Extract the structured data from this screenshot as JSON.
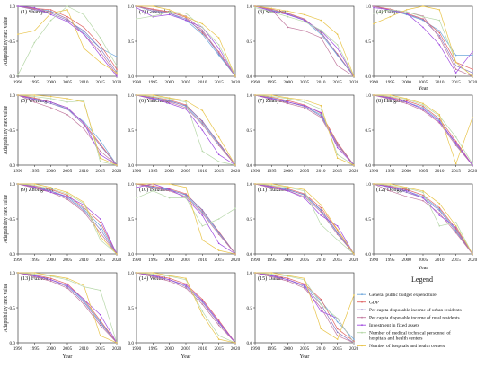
{
  "chart_data": {
    "type": "line",
    "x": [
      1990,
      1995,
      2000,
      2005,
      2010,
      2015,
      2020
    ],
    "xlabel": "Year",
    "ylabel": "Adaptability inex value",
    "ylim": [
      0,
      1
    ],
    "yticks": [
      "0.0",
      "0.5",
      "1.0"
    ],
    "legend": {
      "title": "Legend",
      "placement": "bottom-right",
      "entries": [
        {
          "name": "General public budget expenditure",
          "color": "#6fa8dc"
        },
        {
          "name": "GDP",
          "color": "#e06666"
        },
        {
          "name": "Per capita disposable income of urban residents",
          "color": "#8e7cc3"
        },
        {
          "name": "Per capita disposable income of rural residents",
          "color": "#c27ba0"
        },
        {
          "name": "Investment in fixed assets",
          "color": "#a14de0"
        },
        {
          "name": "Number of medical technical personnel of hospitals and health centers",
          "color": "#b6d7a8"
        },
        {
          "name": "Number of hospitals and health centers",
          "color": "#e8c44a"
        }
      ]
    },
    "panels": [
      {
        "title": "(1) Shanghai",
        "series": [
          [
            1.0,
            0.97,
            0.93,
            0.82,
            0.62,
            0.4,
            0.28
          ],
          [
            1.0,
            0.97,
            0.95,
            0.85,
            0.7,
            0.45,
            0.1
          ],
          [
            1.0,
            0.95,
            0.9,
            0.8,
            0.65,
            0.4,
            0.05
          ],
          [
            1.0,
            0.96,
            0.92,
            0.82,
            0.6,
            0.35,
            0.02
          ],
          [
            1.0,
            0.98,
            0.88,
            0.78,
            0.6,
            0.3,
            0.0
          ],
          [
            0.02,
            0.48,
            0.8,
            1.0,
            0.88,
            0.55,
            0.15
          ],
          [
            0.6,
            0.65,
            0.9,
            0.95,
            0.4,
            0.2,
            0.05
          ]
        ]
      },
      {
        "title": "(2) Guangzhou",
        "series": [
          [
            1.0,
            0.95,
            0.9,
            0.8,
            0.6,
            0.3,
            0.0
          ],
          [
            1.0,
            0.96,
            0.92,
            0.84,
            0.62,
            0.35,
            0.0
          ],
          [
            1.0,
            0.93,
            0.9,
            0.82,
            0.64,
            0.32,
            0.0
          ],
          [
            1.0,
            0.95,
            0.91,
            0.86,
            0.66,
            0.34,
            0.0
          ],
          [
            0.98,
            0.85,
            0.88,
            0.8,
            0.7,
            0.4,
            0.0
          ],
          [
            0.82,
            0.86,
            0.92,
            0.9,
            0.7,
            0.45,
            0.0
          ],
          [
            1.0,
            1.0,
            0.95,
            0.85,
            0.75,
            0.55,
            0.0
          ]
        ]
      },
      {
        "title": "(3) Shenzhen",
        "series": [
          [
            1.0,
            0.95,
            0.88,
            0.8,
            0.6,
            0.3,
            0.0
          ],
          [
            1.0,
            0.96,
            0.9,
            0.82,
            0.62,
            0.32,
            0.0
          ],
          [
            1.0,
            0.94,
            0.89,
            0.81,
            0.63,
            0.31,
            0.0
          ],
          [
            1.0,
            0.95,
            0.7,
            0.65,
            0.55,
            0.15,
            0.0
          ],
          [
            1.0,
            0.93,
            0.88,
            0.8,
            0.65,
            0.4,
            0.0
          ],
          [
            0.98,
            0.92,
            0.85,
            0.78,
            0.66,
            0.45,
            0.0
          ],
          [
            1.0,
            0.97,
            0.93,
            0.88,
            0.8,
            0.6,
            0.0
          ]
        ]
      },
      {
        "title": "(4) Tianjin",
        "series": [
          [
            1.0,
            0.95,
            0.88,
            0.8,
            0.65,
            0.3,
            0.3
          ],
          [
            1.0,
            0.96,
            0.9,
            0.82,
            0.62,
            0.2,
            0.1
          ],
          [
            1.0,
            0.94,
            0.89,
            0.81,
            0.58,
            0.15,
            0.05
          ],
          [
            1.0,
            0.95,
            0.92,
            0.86,
            0.55,
            0.1,
            0.0
          ],
          [
            0.98,
            0.95,
            0.9,
            0.7,
            0.45,
            0.05,
            0.35
          ],
          [
            0.9,
            0.95,
            0.92,
            0.85,
            0.8,
            0.2,
            0.0
          ],
          [
            0.75,
            0.85,
            0.95,
            1.0,
            0.95,
            0.2,
            0.0
          ]
        ]
      },
      {
        "title": "(5) Weifang",
        "series": [
          [
            1.0,
            0.95,
            0.9,
            0.8,
            0.62,
            0.35,
            0.0
          ],
          [
            1.0,
            0.96,
            0.9,
            0.82,
            0.6,
            0.3,
            0.0
          ],
          [
            1.0,
            0.93,
            0.88,
            0.8,
            0.58,
            0.28,
            0.0
          ],
          [
            1.0,
            0.9,
            0.82,
            0.72,
            0.52,
            0.2,
            0.0
          ],
          [
            1.0,
            0.94,
            0.9,
            0.82,
            0.6,
            0.15,
            0.0
          ],
          [
            1.0,
            0.98,
            0.95,
            0.9,
            0.92,
            0.05,
            0.0
          ],
          [
            1.0,
            1.0,
            0.98,
            0.95,
            0.9,
            0.1,
            0.0
          ]
        ]
      },
      {
        "title": "(6) Yancheng",
        "series": [
          [
            1.0,
            0.96,
            0.92,
            0.84,
            0.6,
            0.3,
            0.0
          ],
          [
            1.0,
            0.97,
            0.93,
            0.86,
            0.62,
            0.32,
            0.0
          ],
          [
            1.0,
            0.95,
            0.91,
            0.85,
            0.63,
            0.31,
            0.0
          ],
          [
            1.0,
            0.94,
            0.9,
            0.82,
            0.58,
            0.28,
            0.0
          ],
          [
            1.0,
            0.95,
            0.88,
            0.8,
            0.5,
            0.15,
            0.0
          ],
          [
            1.0,
            0.98,
            0.95,
            0.9,
            0.2,
            0.05,
            0.0
          ],
          [
            1.0,
            1.0,
            0.96,
            0.92,
            0.78,
            0.4,
            0.0
          ]
        ]
      },
      {
        "title": "(7) Zhanjiang",
        "series": [
          [
            1.0,
            0.96,
            0.9,
            0.84,
            0.72,
            0.3,
            0.0
          ],
          [
            1.0,
            0.97,
            0.92,
            0.86,
            0.74,
            0.32,
            0.0
          ],
          [
            1.0,
            0.95,
            0.9,
            0.84,
            0.7,
            0.3,
            0.0
          ],
          [
            1.0,
            0.94,
            0.88,
            0.82,
            0.68,
            0.28,
            0.0
          ],
          [
            1.0,
            0.95,
            0.9,
            0.85,
            0.75,
            0.25,
            0.0
          ],
          [
            1.0,
            0.98,
            0.95,
            0.9,
            0.8,
            0.15,
            0.0
          ],
          [
            1.0,
            1.0,
            0.96,
            0.93,
            0.85,
            0.1,
            0.0
          ]
        ]
      },
      {
        "title": "(8) Hangzhou",
        "series": [
          [
            1.0,
            0.96,
            0.9,
            0.82,
            0.64,
            0.3,
            0.0
          ],
          [
            1.0,
            0.97,
            0.92,
            0.84,
            0.66,
            0.34,
            0.0
          ],
          [
            1.0,
            0.95,
            0.9,
            0.8,
            0.62,
            0.3,
            0.0
          ],
          [
            1.0,
            0.94,
            0.88,
            0.78,
            0.6,
            0.28,
            0.0
          ],
          [
            1.0,
            0.96,
            0.9,
            0.8,
            0.62,
            0.32,
            0.0
          ],
          [
            1.0,
            0.98,
            0.94,
            0.86,
            0.7,
            0.4,
            0.02
          ],
          [
            1.0,
            1.0,
            0.95,
            0.88,
            0.72,
            0.02,
            0.68
          ]
        ]
      },
      {
        "title": "(9) Zhongshan",
        "series": [
          [
            1.0,
            0.96,
            0.9,
            0.82,
            0.64,
            0.4,
            0.0
          ],
          [
            1.0,
            0.97,
            0.92,
            0.84,
            0.66,
            0.45,
            0.0
          ],
          [
            1.0,
            0.95,
            0.9,
            0.8,
            0.62,
            0.35,
            0.0
          ],
          [
            1.0,
            0.94,
            0.88,
            0.78,
            0.6,
            0.3,
            0.0
          ],
          [
            1.0,
            0.96,
            0.88,
            0.82,
            0.7,
            0.5,
            0.0
          ],
          [
            1.0,
            0.98,
            0.93,
            0.86,
            0.72,
            0.2,
            0.0
          ],
          [
            1.0,
            1.0,
            0.95,
            0.88,
            0.74,
            0.25,
            0.0
          ]
        ]
      },
      {
        "title": "(10) Binzhou",
        "series": [
          [
            1.0,
            0.96,
            0.92,
            0.84,
            0.6,
            0.3,
            0.0
          ],
          [
            1.0,
            0.97,
            0.93,
            0.86,
            0.62,
            0.32,
            0.0
          ],
          [
            1.0,
            0.95,
            0.91,
            0.85,
            0.63,
            0.31,
            0.0
          ],
          [
            1.0,
            0.94,
            0.9,
            0.82,
            0.58,
            0.28,
            0.0
          ],
          [
            0.95,
            1.0,
            0.92,
            0.8,
            0.55,
            0.15,
            0.0
          ],
          [
            0.8,
            0.9,
            0.8,
            0.8,
            0.4,
            0.5,
            0.65
          ],
          [
            1.0,
            1.0,
            1.0,
            0.95,
            0.2,
            0.05,
            0.0
          ]
        ]
      },
      {
        "title": "(11) Huizhou",
        "series": [
          [
            1.0,
            0.96,
            0.92,
            0.84,
            0.62,
            0.3,
            0.0
          ],
          [
            1.0,
            0.97,
            0.93,
            0.86,
            0.66,
            0.34,
            0.0
          ],
          [
            1.0,
            0.95,
            0.91,
            0.85,
            0.63,
            0.31,
            0.0
          ],
          [
            1.0,
            0.94,
            0.9,
            0.82,
            0.6,
            0.28,
            0.0
          ],
          [
            1.0,
            0.96,
            0.9,
            0.8,
            0.55,
            0.4,
            0.0
          ],
          [
            1.0,
            0.98,
            0.95,
            0.9,
            0.42,
            0.2,
            0.0
          ],
          [
            1.0,
            1.0,
            0.96,
            0.92,
            0.7,
            0.35,
            0.0
          ]
        ]
      },
      {
        "title": "(12) Dongguan",
        "series": [
          [
            1.0,
            0.96,
            0.9,
            0.82,
            0.64,
            0.34,
            0.0
          ],
          [
            1.0,
            0.97,
            0.92,
            0.84,
            0.66,
            0.36,
            0.0
          ],
          [
            1.0,
            0.95,
            0.88,
            0.8,
            0.62,
            0.32,
            0.0
          ],
          [
            1.0,
            0.9,
            0.82,
            0.76,
            0.58,
            0.3,
            0.0
          ],
          [
            1.0,
            0.96,
            0.9,
            0.8,
            0.55,
            0.38,
            0.0
          ],
          [
            1.0,
            0.98,
            0.94,
            0.88,
            0.4,
            0.45,
            0.0
          ],
          [
            1.0,
            1.0,
            0.95,
            0.9,
            0.72,
            0.4,
            0.0
          ]
        ]
      },
      {
        "title": "(13) Fuzhou",
        "series": [
          [
            1.0,
            0.96,
            0.9,
            0.82,
            0.6,
            0.3,
            0.0
          ],
          [
            1.0,
            0.97,
            0.92,
            0.84,
            0.62,
            0.32,
            0.0
          ],
          [
            1.0,
            0.95,
            0.9,
            0.8,
            0.58,
            0.28,
            0.0
          ],
          [
            1.0,
            0.94,
            0.88,
            0.78,
            0.55,
            0.25,
            0.0
          ],
          [
            1.0,
            0.96,
            0.9,
            0.82,
            0.62,
            0.4,
            0.0
          ],
          [
            1.0,
            0.98,
            0.95,
            0.9,
            0.8,
            0.75,
            0.0
          ],
          [
            1.0,
            1.0,
            0.96,
            0.92,
            0.82,
            0.1,
            0.0
          ]
        ]
      },
      {
        "title": "(14) Weihai",
        "series": [
          [
            1.0,
            0.96,
            0.9,
            0.82,
            0.6,
            0.3,
            0.0
          ],
          [
            1.0,
            0.97,
            0.92,
            0.84,
            0.62,
            0.32,
            0.0
          ],
          [
            1.0,
            0.95,
            0.9,
            0.8,
            0.58,
            0.28,
            0.0
          ],
          [
            1.0,
            0.94,
            0.88,
            0.78,
            0.55,
            0.25,
            0.0
          ],
          [
            1.0,
            0.96,
            0.9,
            0.82,
            0.6,
            0.3,
            0.0
          ],
          [
            1.0,
            0.98,
            0.95,
            0.9,
            0.45,
            0.1,
            0.0
          ],
          [
            1.0,
            1.0,
            0.96,
            0.92,
            0.4,
            0.05,
            0.0
          ]
        ]
      },
      {
        "title": "(15) Dalian",
        "series": [
          [
            1.0,
            0.96,
            0.9,
            0.82,
            0.6,
            0.3,
            0.05
          ],
          [
            1.0,
            0.97,
            0.92,
            0.84,
            0.62,
            0.2,
            0.02
          ],
          [
            1.0,
            0.95,
            0.9,
            0.8,
            0.55,
            0.15,
            0.0
          ],
          [
            1.0,
            0.94,
            0.88,
            0.78,
            0.5,
            0.1,
            0.0
          ],
          [
            1.0,
            0.96,
            0.9,
            0.82,
            0.45,
            0.35,
            0.0
          ],
          [
            1.0,
            0.98,
            0.95,
            0.9,
            0.55,
            0.35,
            0.0
          ],
          [
            1.0,
            1.0,
            0.96,
            0.92,
            0.2,
            0.05,
            0.68
          ]
        ]
      }
    ]
  }
}
